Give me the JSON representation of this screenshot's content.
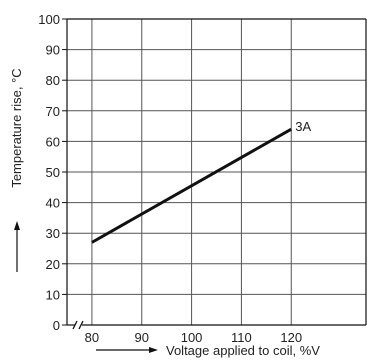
{
  "chart_data": {
    "type": "line",
    "xlabel": "Voltage applied to coil, %V",
    "ylabel": "Temperature rise, °C",
    "xlim": [
      75,
      135
    ],
    "ylim": [
      0,
      100
    ],
    "x_ticks": [
      80,
      90,
      100,
      110,
      120
    ],
    "y_ticks": [
      0,
      10,
      20,
      30,
      40,
      50,
      60,
      70,
      80,
      90,
      100
    ],
    "x_tick_labels": [
      "80",
      "90",
      "100",
      "110",
      "120"
    ],
    "y_tick_labels": [
      "0",
      "10",
      "20",
      "30",
      "40",
      "50",
      "60",
      "70",
      "80",
      "90",
      "100"
    ],
    "grid": true,
    "axis_break": "x",
    "series": [
      {
        "name": "3A",
        "x": [
          80,
          120
        ],
        "y": [
          27,
          64
        ]
      }
    ]
  },
  "colors": {
    "line": "#111111",
    "grid": "#555555",
    "frame": "#111111"
  }
}
